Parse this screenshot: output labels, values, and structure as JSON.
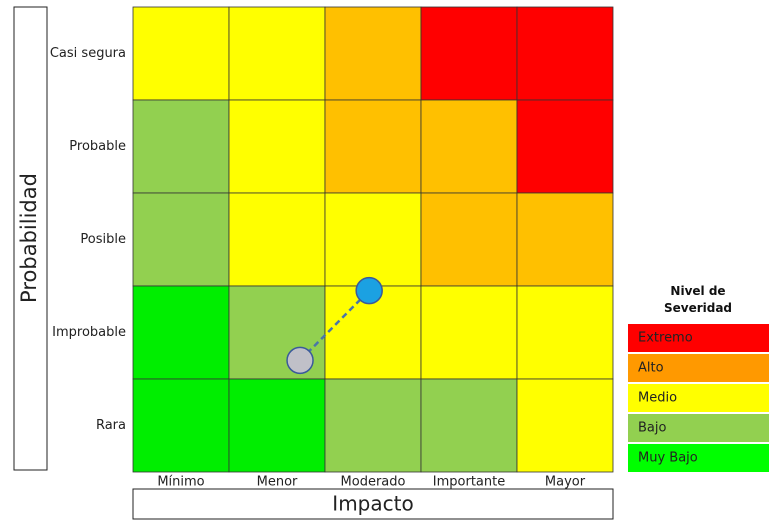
{
  "chart_data": {
    "type": "risk-matrix",
    "x_label": "Impacto",
    "y_label": "Probabilidad",
    "categories": [
      "Mínimo",
      "Menor",
      "Moderado",
      "Importante",
      "Mayor"
    ],
    "row_categories": [
      "Casi segura",
      "Probable",
      "Posible",
      "Improbable",
      "Rara"
    ],
    "cells": [
      [
        "#ffff00",
        "#ffff00",
        "#ffc000",
        "#ff0000",
        "#ff0000"
      ],
      [
        "#92d050",
        "#ffff00",
        "#ffc000",
        "#ffc000",
        "#ff0000"
      ],
      [
        "#92d050",
        "#ffff00",
        "#ffff00",
        "#ffc000",
        "#ffc000"
      ],
      [
        "#00ee00",
        "#92d050",
        "#ffff00",
        "#ffff00",
        "#ffff00"
      ],
      [
        "#00ee00",
        "#00ee00",
        "#92d050",
        "#92d050",
        "#ffff00"
      ]
    ],
    "xlim": [
      0,
      5
    ],
    "ylim": [
      0,
      5
    ],
    "points": [
      {
        "color": "#c0c0c8",
        "x": 1.74,
        "y": 1.2
      },
      {
        "color": "#1ba1e2",
        "x": 2.46,
        "y": 1.95
      }
    ],
    "legend_title": "Nivel de Severidad",
    "series": [
      {
        "name": "Extremo",
        "color": "#ff0000"
      },
      {
        "name": "Alto",
        "color": "#ff9900"
      },
      {
        "name": "Medio",
        "color": "#ffff00"
      },
      {
        "name": "Bajo",
        "color": "#92d050"
      },
      {
        "name": "Muy Bajo",
        "color": "#00ff00"
      }
    ]
  }
}
